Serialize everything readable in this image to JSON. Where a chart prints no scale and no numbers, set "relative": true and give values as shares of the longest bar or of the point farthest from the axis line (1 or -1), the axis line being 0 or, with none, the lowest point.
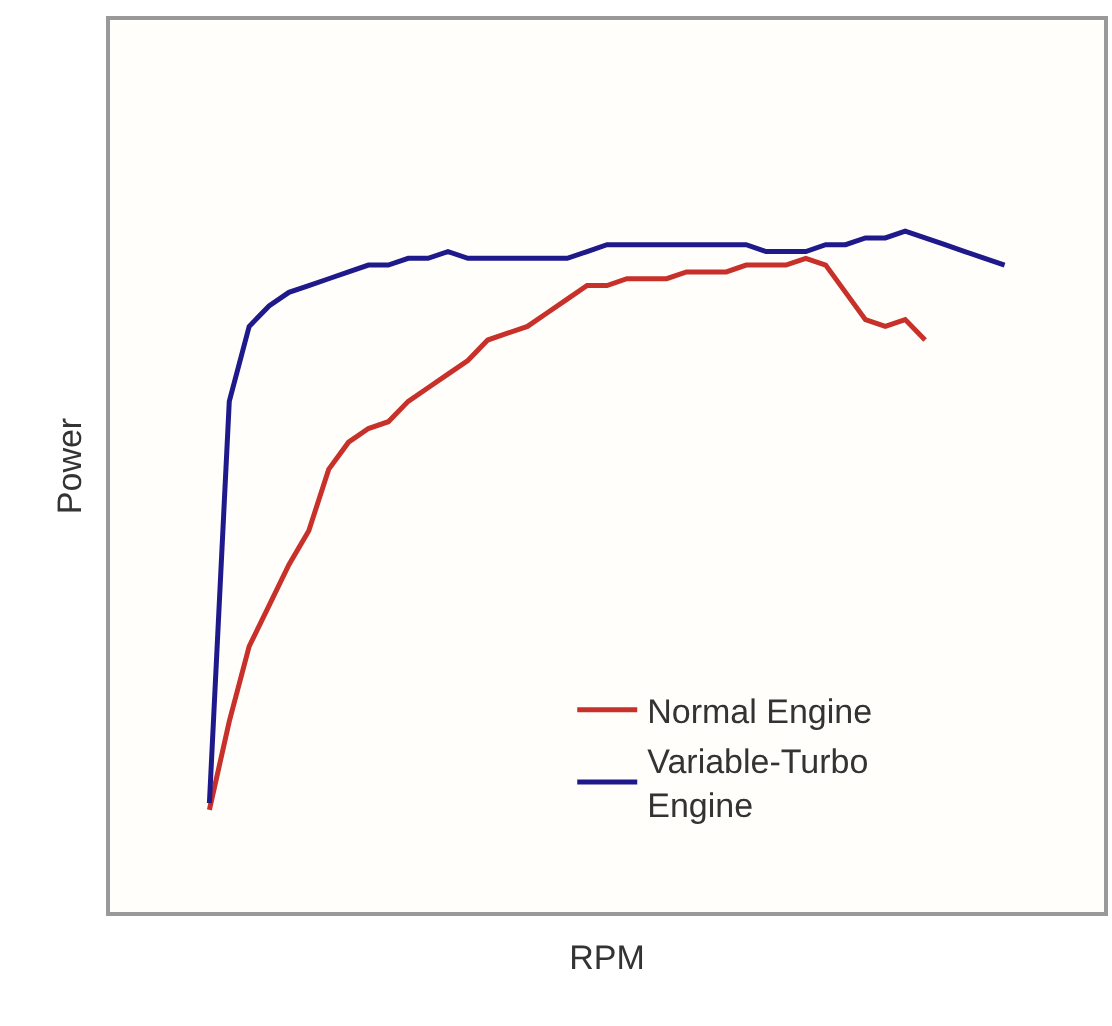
{
  "chart_data": {
    "type": "line",
    "relative": true,
    "xlabel": "RPM",
    "ylabel": "Power",
    "categories": [
      null,
      null,
      null,
      null,
      null,
      null,
      null,
      null,
      null,
      null,
      null,
      null,
      null,
      null,
      null,
      null,
      null,
      null,
      null,
      null,
      null,
      null,
      null,
      null,
      null,
      null,
      null,
      null,
      null,
      null,
      null,
      null,
      null,
      null,
      null,
      null,
      null,
      null,
      null,
      null,
      null,
      null,
      null,
      null,
      null,
      null,
      null,
      null,
      null,
      null,
      null
    ],
    "series": [
      {
        "name": "Normal Engine",
        "color": "#c8302a",
        "values": [
          null,
          null,
          null,
          null,
          null,
          0.15,
          0.28,
          0.39,
          0.45,
          0.51,
          0.56,
          0.65,
          0.69,
          0.71,
          0.72,
          0.75,
          0.77,
          0.79,
          0.81,
          0.84,
          0.85,
          0.86,
          0.88,
          0.9,
          0.92,
          0.92,
          0.93,
          0.93,
          0.93,
          0.94,
          0.94,
          0.94,
          0.95,
          0.95,
          0.95,
          0.96,
          0.95,
          0.91,
          0.87,
          0.86,
          0.87,
          0.84,
          null,
          null,
          null,
          null,
          null,
          null,
          null,
          null,
          null
        ]
      },
      {
        "name": "Variable-Turbo Engine",
        "color": "#1f1a8c",
        "values": [
          null,
          null,
          null,
          null,
          null,
          0.16,
          0.75,
          0.86,
          0.89,
          0.91,
          0.92,
          0.93,
          0.94,
          0.95,
          0.95,
          0.96,
          0.96,
          0.97,
          0.96,
          0.96,
          0.96,
          0.96,
          0.96,
          0.96,
          0.97,
          0.98,
          0.98,
          0.98,
          0.98,
          0.98,
          0.98,
          0.98,
          0.98,
          0.97,
          0.97,
          0.97,
          0.98,
          0.98,
          0.99,
          0.99,
          1.0,
          0.99,
          0.98,
          0.97,
          0.96,
          0.95,
          null,
          null,
          null,
          null,
          null
        ]
      }
    ],
    "legend": "bottom right",
    "tick_labels": false
  }
}
